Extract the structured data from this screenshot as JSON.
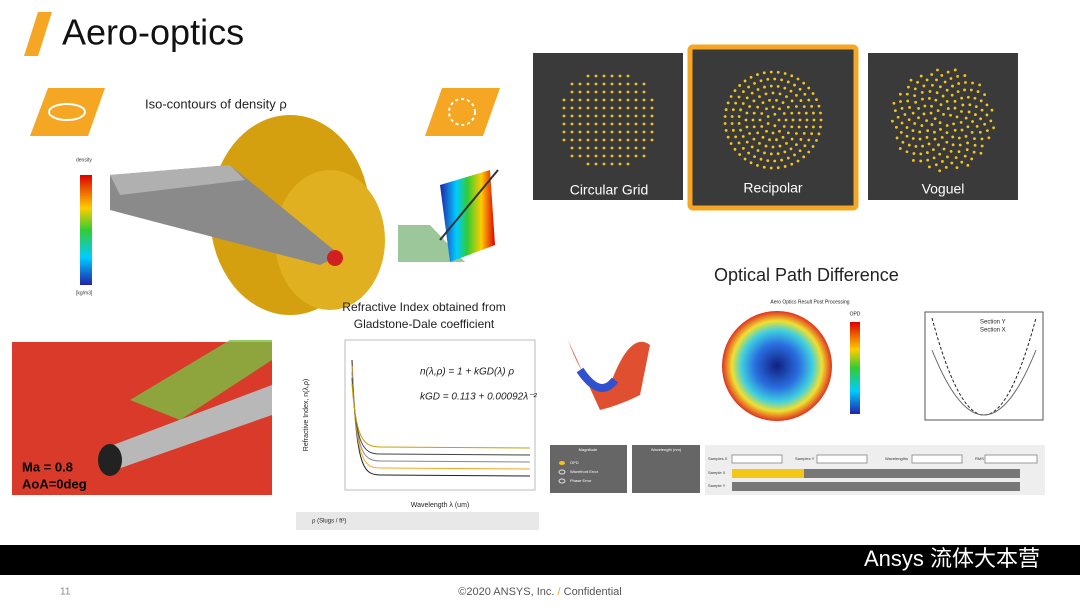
{
  "header": {
    "title": "Aero-optics"
  },
  "left": {
    "density_caption": "Iso-contours of density ρ",
    "colorbar_title": "density",
    "colorbar_unit": "[kg/m3]",
    "flow_labels": [
      "Ma = 0.8",
      "AoA=0deg"
    ]
  },
  "refractive": {
    "title_lines": [
      "Refractive Index obtained from",
      "Gladstone-Dale coefficient"
    ],
    "formula_1": "n(λ,ρ) = 1 + kGD(λ) ρ",
    "formula_2": "kGD = 0.113 + 0.00092λ⁻²",
    "y_label": "Refractive Index, n(λ,ρ)",
    "x_label": "Wavelength λ (um)",
    "legend_title": "ρ (Slugs / ft³)"
  },
  "grids": {
    "labels": [
      "Circular Grid",
      "Recipolar",
      "Voguel"
    ]
  },
  "opd": {
    "title": "Optical Path Difference",
    "plot_title": "Aero Optics Result Post Processing",
    "colorbar_label": "OPD",
    "section_legend": [
      "Section Y",
      "Section X"
    ],
    "controls": {
      "magnitude": "Magnitude",
      "options": [
        "OPD",
        "Wavefront Error",
        "Phase Error"
      ],
      "wavelength": "Wavelength (nm)",
      "fields": [
        "Samples X",
        "Samples Y",
        "Wavelengths",
        "RMS"
      ],
      "sliders": [
        "Sample X",
        "Sample Y"
      ]
    }
  },
  "footer": {
    "page": "11",
    "copyright": "©2020 ANSYS, Inc.",
    "separator": "/",
    "confidential": "Confidential",
    "watermark": "Ansys 流体大本营"
  }
}
